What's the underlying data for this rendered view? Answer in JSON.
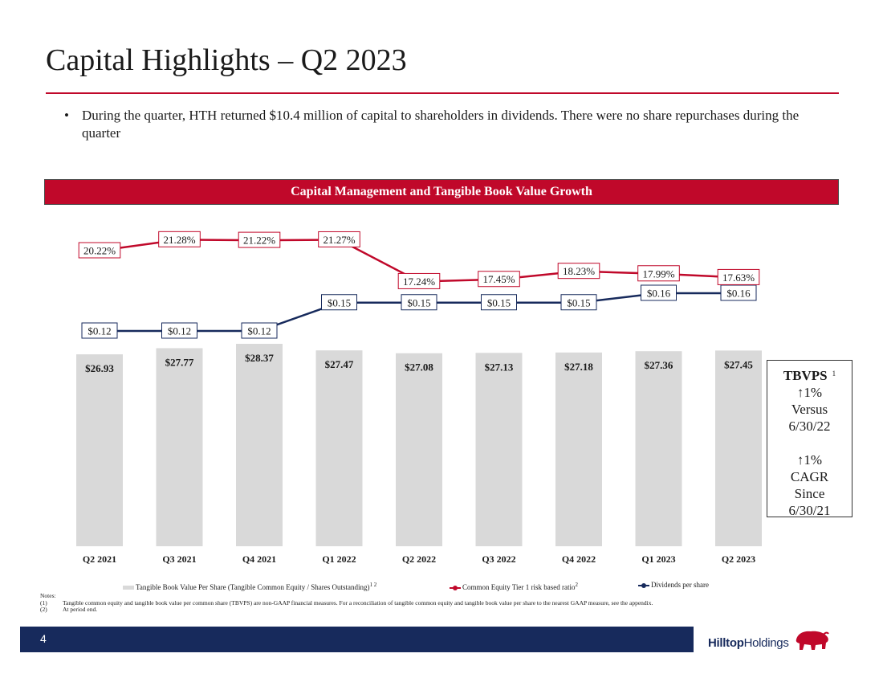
{
  "slide": {
    "title": "Capital Highlights – Q2 2023",
    "bullet": "During the quarter, HTH returned $10.4 million of capital to shareholders in dividends. There were no share repurchases during the quarter",
    "banner": "Capital Management and Tangible Book Value Growth",
    "page_number": "4"
  },
  "tbvps_box": {
    "heading": "TBVPS",
    "heading_sup": "1",
    "lines1": [
      "↑1%",
      "Versus",
      "6/30/22"
    ],
    "lines2": [
      "↑1%",
      "CAGR",
      "Since",
      "6/30/21"
    ]
  },
  "legend": {
    "bar": "Tangible Book Value Per Share (Tangible Common Equity / Shares Outstanding)",
    "bar_sup": "1  2",
    "red": "Common Equity Tier 1 risk based ratio",
    "red_sup": "2",
    "blue": "Dividends per share"
  },
  "notes": {
    "heading": "Notes:",
    "items": [
      {
        "num": "(1)",
        "text": "Tangible common equity and tangible book value per common share (TBVPS) are non-GAAP financial measures. For a reconciliation of tangible common equity and tangible book value per share to the nearest GAAP measure, see the appendix."
      },
      {
        "num": "(2)",
        "text": "At period end."
      }
    ]
  },
  "logo": {
    "part1": "Hilltop",
    "part2": "Holdings"
  },
  "colors": {
    "red": "#c0082a",
    "navy": "#172a5c",
    "bar": "#d9d9d9"
  },
  "chart_data": {
    "type": "bar",
    "categories": [
      "Q2 2021",
      "Q3 2021",
      "Q4 2021",
      "Q1 2022",
      "Q2 2022",
      "Q3 2022",
      "Q4 2022",
      "Q1 2023",
      "Q2 2023"
    ],
    "series": [
      {
        "name": "Tangible Book Value Per Share (Tangible Common Equity / Shares Outstanding)",
        "kind": "bar",
        "values": [
          26.93,
          27.77,
          28.37,
          27.47,
          27.08,
          27.13,
          27.18,
          27.36,
          27.45
        ],
        "labels": [
          "$26.93",
          "$27.77",
          "$28.37",
          "$27.47",
          "$27.08",
          "$27.13",
          "$27.18",
          "$27.36",
          "$27.45"
        ]
      },
      {
        "name": "Common Equity Tier 1 risk based ratio",
        "kind": "line",
        "color": "#c0082a",
        "values": [
          20.22,
          21.28,
          21.22,
          21.27,
          17.24,
          17.45,
          18.23,
          17.99,
          17.63
        ],
        "labels": [
          "20.22%",
          "21.28%",
          "21.22%",
          "21.27%",
          "17.24%",
          "17.45%",
          "18.23%",
          "17.99%",
          "17.63%"
        ]
      },
      {
        "name": "Dividends per share",
        "kind": "line",
        "color": "#172a5c",
        "values": [
          0.12,
          0.12,
          0.12,
          0.15,
          0.15,
          0.15,
          0.15,
          0.16,
          0.16
        ],
        "labels": [
          "$0.12",
          "$0.12",
          "$0.12",
          "$0.15",
          "$0.15",
          "$0.15",
          "$0.15",
          "$0.16",
          "$0.16"
        ]
      }
    ],
    "title": "Capital Management and Tangible Book Value Growth",
    "xlabel": "",
    "ylabel": "",
    "grid": false,
    "legend_position": "bottom"
  }
}
